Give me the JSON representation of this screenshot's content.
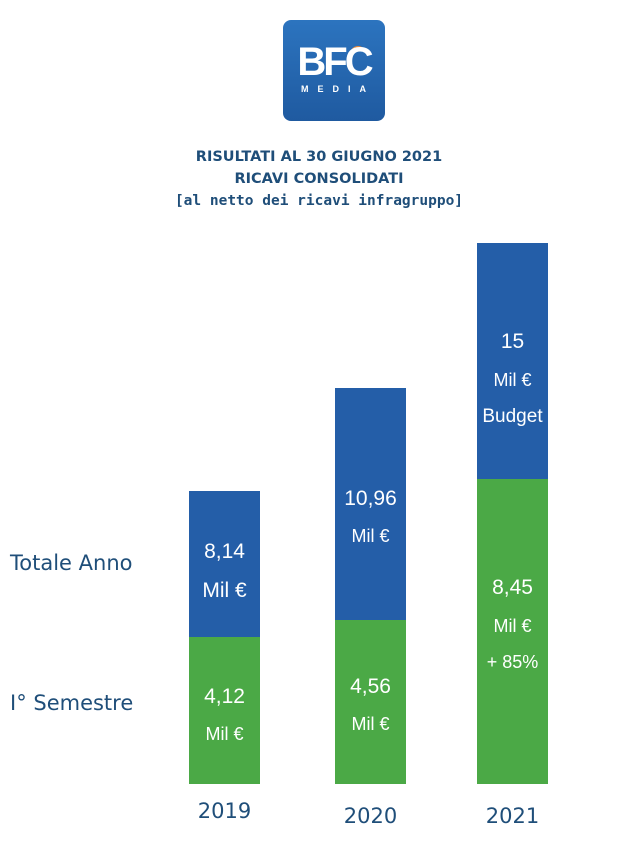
{
  "logo": {
    "main": "BFC",
    "sub": "MEDIA"
  },
  "header": {
    "line1": "RISULTATI AL 30 GIUGNO 2021",
    "line2": "RICAVI CONSOLIDATI",
    "line3": "[al netto dei ricavi infragruppo]"
  },
  "row_labels": {
    "total": "Totale Anno",
    "half": "I° Semestre"
  },
  "colors": {
    "total": "#245ea8",
    "half": "#4ba946",
    "text": "#1f4e79"
  },
  "chart_data": {
    "type": "bar",
    "stacked": true,
    "categories": [
      "2019",
      "2020",
      "2021"
    ],
    "series": [
      {
        "name": "I° Semestre",
        "values": [
          4.12,
          4.56,
          8.45
        ]
      },
      {
        "name": "Totale Anno",
        "values": [
          8.14,
          10.96,
          15
        ]
      }
    ],
    "labels": {
      "half": [
        {
          "value": "4,12",
          "unit": "Mil €",
          "note": ""
        },
        {
          "value": "4,56",
          "unit": "Mil €",
          "note": ""
        },
        {
          "value": "8,45",
          "unit": "Mil €",
          "note": "+ 85%"
        }
      ],
      "total": [
        {
          "value": "8,14",
          "unit": "Mil €",
          "note": ""
        },
        {
          "value": "10,96",
          "unit": "Mil €",
          "note": ""
        },
        {
          "value": "15",
          "unit": "Mil €",
          "note": "Budget"
        }
      ]
    }
  }
}
